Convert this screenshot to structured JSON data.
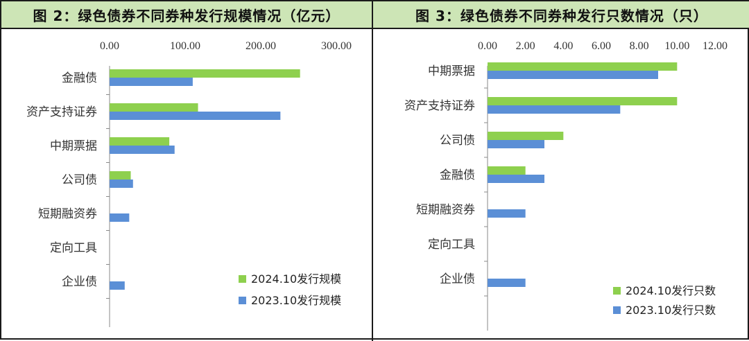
{
  "colors": {
    "green": "#8ed04e",
    "blue": "#5b8fd6",
    "header_bg": "#cde5b6"
  },
  "chart_data": [
    {
      "type": "bar",
      "orientation": "horizontal",
      "title": "图 2：绿色债券不同券种发行规模情况（亿元）",
      "categories": [
        "金融债",
        "资产支持证券",
        "中期票据",
        "公司债",
        "短期融资券",
        "定向工具",
        "企业债"
      ],
      "series": [
        {
          "name": "2024.10发行规模",
          "color": "#8ed04e",
          "values": [
            252,
            117,
            79,
            28,
            0,
            0,
            0
          ]
        },
        {
          "name": "2023.10发行规模",
          "color": "#5b8fd6",
          "values": [
            110,
            226,
            86,
            31,
            26,
            0,
            20
          ]
        }
      ],
      "xlim": [
        0,
        300
      ],
      "xticks": [
        "0.00",
        "100.00",
        "200.00",
        "300.00"
      ],
      "xtick_values": [
        0,
        100,
        200,
        300
      ],
      "axis_position": "top",
      "legend": "bottom-right",
      "grid": false
    },
    {
      "type": "bar",
      "orientation": "horizontal",
      "title": "图 3：绿色债券不同券种发行只数情况（只）",
      "categories": [
        "中期票据",
        "资产支持证券",
        "公司债",
        "金融债",
        "短期融资券",
        "定向工具",
        "企业债"
      ],
      "series": [
        {
          "name": "2024.10发行只数",
          "color": "#8ed04e",
          "values": [
            10,
            10,
            4,
            2,
            0,
            0,
            0
          ]
        },
        {
          "name": "2023.10发行只数",
          "color": "#5b8fd6",
          "values": [
            9,
            7,
            3,
            3,
            2,
            0,
            2
          ]
        }
      ],
      "xlim": [
        0,
        12
      ],
      "xticks": [
        "0.00",
        "2.00",
        "4.00",
        "6.00",
        "8.00",
        "10.00",
        "12.00"
      ],
      "xtick_values": [
        0,
        2,
        4,
        6,
        8,
        10,
        12
      ],
      "axis_position": "top",
      "legend": "bottom-right",
      "grid": false
    }
  ]
}
